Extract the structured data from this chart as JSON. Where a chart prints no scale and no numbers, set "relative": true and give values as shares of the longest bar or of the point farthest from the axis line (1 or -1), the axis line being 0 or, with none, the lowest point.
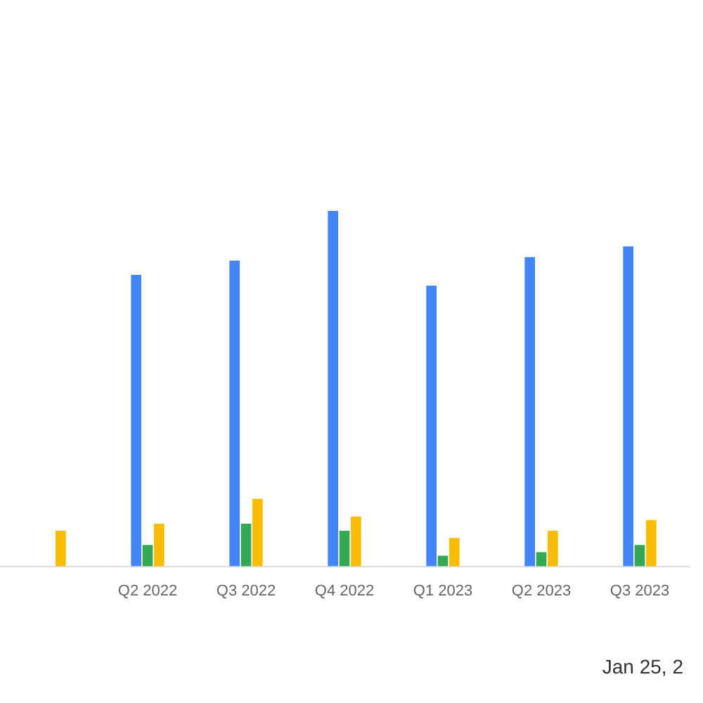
{
  "chart_data": {
    "type": "bar",
    "relative": true,
    "categories": [
      null,
      "Q2 2022",
      "Q3 2022",
      "Q4 2022",
      "Q1 2023",
      "Q2 2023",
      "Q3 2023"
    ],
    "series": [
      {
        "color": "#4285f4",
        "values": [
          null,
          0.82,
          0.86,
          1,
          0.79,
          0.87,
          0.9
        ]
      },
      {
        "color": "#34a853",
        "values": [
          null,
          0.06,
          0.12,
          0.1,
          0.03,
          0.04,
          0.06
        ]
      },
      {
        "color": "#fbbc04",
        "values": [
          0.1,
          0.12,
          0.19,
          0.14,
          0.08,
          0.1,
          0.13
        ]
      }
    ],
    "legend": false,
    "annotations": [
      "Jan 25, 2"
    ]
  }
}
